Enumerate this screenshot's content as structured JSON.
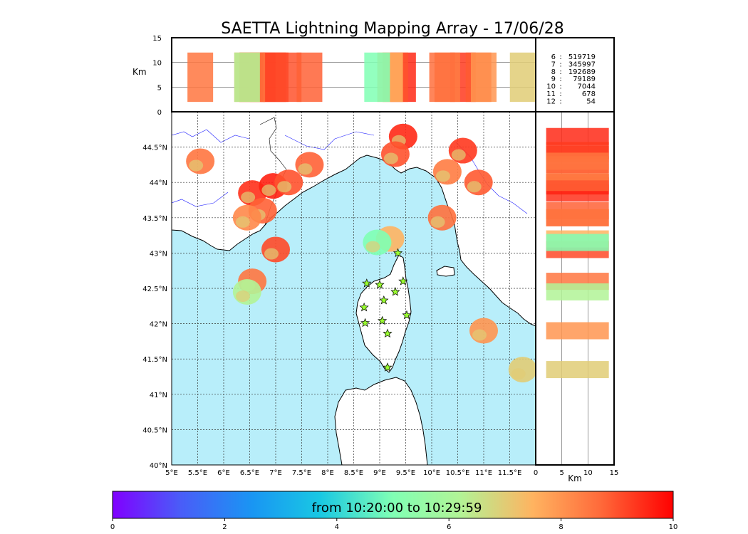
{
  "chart_data": {
    "type": "scatter",
    "title": "SAETTA Lightning Mapping Array - 17/06/28",
    "map": {
      "lon_range": [
        5,
        12
      ],
      "lat_range": [
        40,
        45
      ],
      "lon_ticks": [
        "5°E",
        "5.5°E",
        "6°E",
        "6.5°E",
        "7°E",
        "7.5°E",
        "8°E",
        "8.5°E",
        "9°E",
        "9.5°E",
        "10°E",
        "10.5°E",
        "11°E",
        "11.5°E"
      ],
      "lat_ticks": [
        "40°N",
        "40.5°N",
        "41°N",
        "41.5°N",
        "42°N",
        "42.5°N",
        "43°N",
        "43.5°N",
        "44°N",
        "44.5°N"
      ],
      "grid": true
    },
    "altitude_top": {
      "ylabel": "Km",
      "ylim": [
        0,
        15
      ],
      "yticks": [
        "0",
        "5",
        "10",
        "15"
      ]
    },
    "altitude_side": {
      "xlabel": "Km",
      "xlim": [
        0,
        15
      ],
      "xticks": [
        "0",
        "5",
        "10",
        "15"
      ]
    },
    "station_counts": [
      {
        "stations": "6",
        "count": "519719",
        "color": "#000000"
      },
      {
        "stations": "7",
        "count": "345997",
        "color": "#ff0000"
      },
      {
        "stations": "8",
        "count": "192689",
        "color": "#000000"
      },
      {
        "stations": "9",
        "count": "79189",
        "color": "#000000"
      },
      {
        "stations": "10",
        "count": "7044",
        "color": "#000000"
      },
      {
        "stations": "11",
        "count": "678",
        "color": "#000000"
      },
      {
        "stations": "12",
        "count": "54",
        "color": "#000000"
      }
    ],
    "colorbar": {
      "label": "from 10:20:00 to 10:29:59",
      "range": [
        0,
        10
      ],
      "ticks": [
        "0",
        "2",
        "4",
        "6",
        "8",
        "10"
      ],
      "colormap": "rainbow"
    },
    "sources": [
      {
        "lon": 6.55,
        "lat": 43.85,
        "time": 9.4
      },
      {
        "lon": 6.75,
        "lat": 43.6,
        "time": 8.8
      },
      {
        "lon": 6.95,
        "lat": 43.95,
        "time": 9.6
      },
      {
        "lon": 7.25,
        "lat": 44.0,
        "time": 9.0
      },
      {
        "lon": 6.45,
        "lat": 43.5,
        "time": 8.2
      },
      {
        "lon": 7.0,
        "lat": 43.05,
        "time": 9.1
      },
      {
        "lon": 6.55,
        "lat": 42.6,
        "time": 8.5
      },
      {
        "lon": 6.45,
        "lat": 42.45,
        "time": 6.2
      },
      {
        "lon": 9.45,
        "lat": 44.65,
        "time": 9.5
      },
      {
        "lon": 9.3,
        "lat": 44.4,
        "time": 9.0
      },
      {
        "lon": 10.6,
        "lat": 44.45,
        "time": 9.3
      },
      {
        "lon": 10.9,
        "lat": 44.0,
        "time": 8.9
      },
      {
        "lon": 10.3,
        "lat": 44.15,
        "time": 8.4
      },
      {
        "lon": 7.65,
        "lat": 44.25,
        "time": 8.8
      },
      {
        "lon": 10.2,
        "lat": 43.5,
        "time": 8.6
      },
      {
        "lon": 9.2,
        "lat": 43.2,
        "time": 7.5
      },
      {
        "lon": 8.95,
        "lat": 43.15,
        "time": 5.0
      },
      {
        "lon": 11.0,
        "lat": 41.9,
        "time": 8.0
      },
      {
        "lon": 11.75,
        "lat": 41.35,
        "time": 7.0
      },
      {
        "lon": 5.55,
        "lat": 44.3,
        "time": 8.5
      }
    ],
    "stations": [
      {
        "lon": 9.35,
        "lat": 43.0
      },
      {
        "lon": 8.75,
        "lat": 42.57
      },
      {
        "lon": 9.0,
        "lat": 42.55
      },
      {
        "lon": 9.45,
        "lat": 42.6
      },
      {
        "lon": 9.3,
        "lat": 42.45
      },
      {
        "lon": 9.08,
        "lat": 42.33
      },
      {
        "lon": 8.7,
        "lat": 42.23
      },
      {
        "lon": 9.52,
        "lat": 42.12
      },
      {
        "lon": 9.05,
        "lat": 42.04
      },
      {
        "lon": 8.72,
        "lat": 42.01
      },
      {
        "lon": 9.15,
        "lat": 41.86
      },
      {
        "lon": 9.15,
        "lat": 41.38
      }
    ],
    "colors": {
      "sea": "#b8eefa",
      "land": "#ffffff",
      "storm": "#ff4a26",
      "star": "#9aff30"
    }
  }
}
